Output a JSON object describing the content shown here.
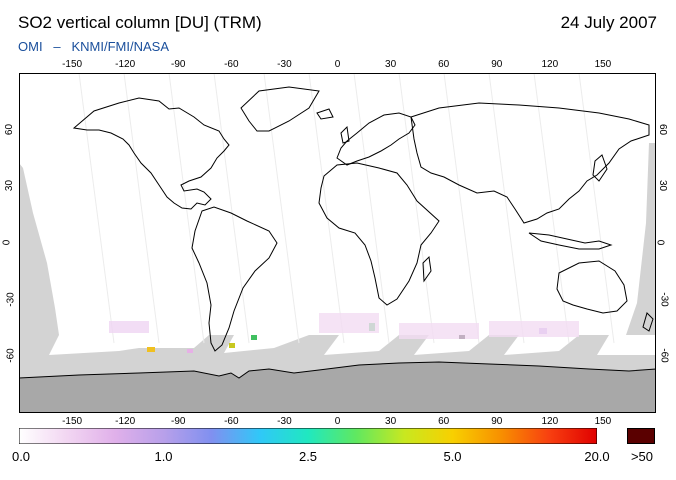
{
  "header": {
    "title": "SO2 vertical column [DU] (TRM)",
    "date": "24 July 2007",
    "credit_left": "OMI",
    "credit_dash": "–",
    "credit_right": "KNMI/FMI/NASA"
  },
  "map": {
    "projection": "equirectangular",
    "lon_range": [
      -180,
      180
    ],
    "lat_range": [
      -90,
      90
    ],
    "lon_ticks": [
      -150,
      -120,
      -90,
      -60,
      -30,
      0,
      30,
      60,
      90,
      120,
      150
    ],
    "lat_ticks": [
      60,
      30,
      0,
      -30,
      -60
    ],
    "lon_tick_labels": [
      "-150",
      "-120",
      "-90",
      "-60",
      "-30",
      "0",
      "30",
      "60",
      "90",
      "120",
      "150"
    ],
    "lat_tick_labels": [
      "60",
      "30",
      "0",
      "-30",
      "-60"
    ],
    "no_data_color": "#d3d3d3",
    "antarctic_color": "#a8a8a8",
    "coastline_color": "#000000"
  },
  "colorbar": {
    "labels": [
      "0.0",
      "1.0",
      "2.5",
      "5.0",
      "20.0"
    ],
    "overflow_label": ">50",
    "overflow_color": "#5a0000",
    "stops": [
      "#ffffff",
      "#f2d6f2",
      "#e0b0ea",
      "#b8a0ea",
      "#8090f0",
      "#30c8f8",
      "#20e8c0",
      "#60e860",
      "#c8e820",
      "#f8d000",
      "#f89000",
      "#f84010",
      "#e00000"
    ]
  }
}
